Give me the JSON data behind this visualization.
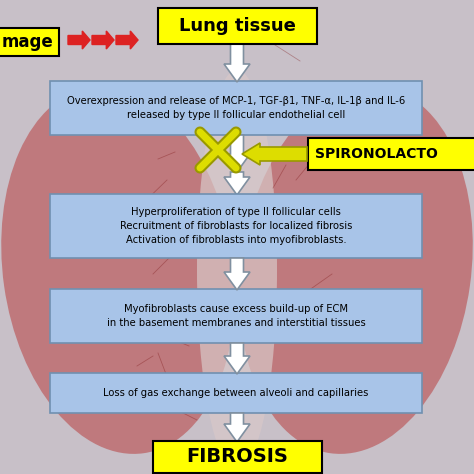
{
  "title": "Lung tissue",
  "fibrosis": "FIBROSIS",
  "spironolactone": "SPIRONOLACTO",
  "image_label": "mage",
  "box1_text": "Overexpression and release of MCP-1, TGF-β1, TNF-α, IL-1β and IL-6\nreleased by type II follicular endothelial cell",
  "box2_text": "Hyperproliferation of type II follicular cells\nRecruitment of fibroblasts for localized fibrosis\nActivation of fibroblasts into myofibroblasts.",
  "box3_text": "Myofibroblasts cause excess build-up of ECM\nin the basement membranes and interstitial tissues",
  "box4_text": "Loss of gas exchange between alveoli and capillaries",
  "yellow_fill": "#FFFF00",
  "blue_fill": "#A8C4E8",
  "white": "#FFFFFF",
  "black": "#000000",
  "red": "#DD2222",
  "bg_color": "#C8C0C8",
  "lung_color": "#B04040",
  "arrow_white": "#FFFFFF",
  "arrow_edge": "#8090A0",
  "spiro_arrow": "#DDDD00",
  "x_color": "#DDDD00",
  "x_edge": "#999900",
  "box_edge": "#7090B0"
}
